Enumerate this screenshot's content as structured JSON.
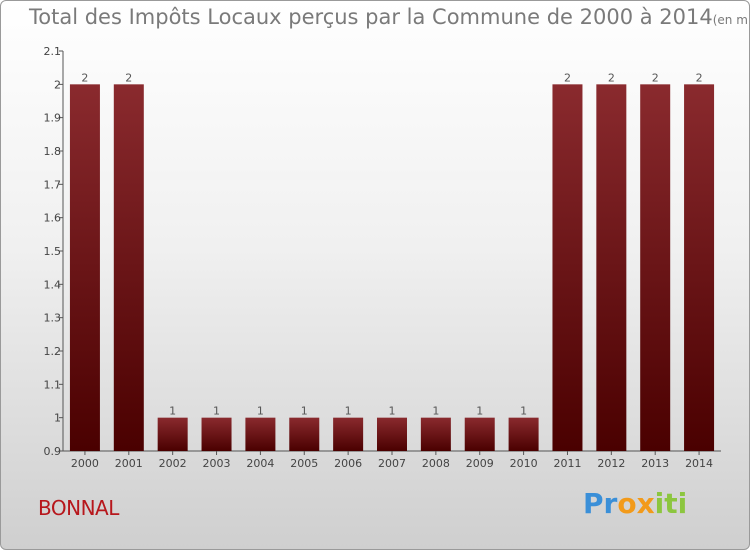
{
  "chart_data": {
    "type": "bar",
    "title": "Total des Impôts Locaux perçus par la Commune de 2000 à 2014",
    "unit_label": "(en milliers d'€)",
    "categories": [
      "2000",
      "2001",
      "2002",
      "2003",
      "2004",
      "2005",
      "2006",
      "2007",
      "2008",
      "2009",
      "2010",
      "2011",
      "2012",
      "2013",
      "2014"
    ],
    "values": [
      2,
      2,
      1,
      1,
      1,
      1,
      1,
      1,
      1,
      1,
      1,
      2,
      2,
      2,
      2
    ],
    "data_labels": [
      "2",
      "2",
      "1",
      "1",
      "1",
      "1",
      "1",
      "1",
      "1",
      "1",
      "1",
      "2",
      "2",
      "2",
      "2"
    ],
    "ylim": [
      0.9,
      2.1
    ],
    "yticks": [
      0.9,
      1,
      1.1,
      1.2,
      1.3,
      1.4,
      1.5,
      1.6,
      1.7,
      1.8,
      1.9,
      2,
      2.1
    ],
    "ytick_labels": [
      "0.9",
      "1",
      "1.1",
      "1.2",
      "1.3",
      "1.4",
      "1.5",
      "1.6",
      "1.7",
      "1.8",
      "1.9",
      "2",
      "2.1"
    ],
    "xlabel": "",
    "ylabel": "",
    "bar_color": "#7b0f13",
    "grid": false
  },
  "commune": "BONNAL",
  "logo": {
    "letters": [
      "P",
      "r",
      "o",
      "x",
      "i",
      "t",
      "i"
    ],
    "colors": [
      "#3a8fd8",
      "#3a8fd8",
      "#f29a1a",
      "#f29a1a",
      "#8cc63f",
      "#8cc63f",
      "#8cc63f"
    ]
  }
}
